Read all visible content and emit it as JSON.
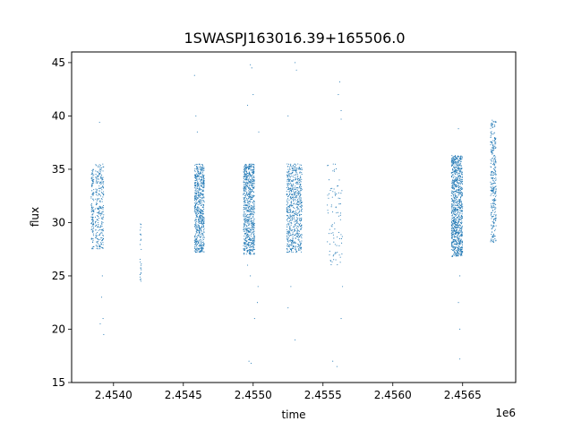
{
  "chart_data": {
    "type": "scatter",
    "title": "1SWASPJ163016.39+165506.0",
    "xlabel": "time",
    "ylabel": "flux",
    "x_offset_label": "1e6",
    "xlim": [
      2453700,
      2456880
    ],
    "ylim": [
      15,
      46
    ],
    "xticks": [
      2454000,
      2454500,
      2455000,
      2455500,
      2456000,
      2456500
    ],
    "xtick_labels": [
      "2.4540",
      "2.4545",
      "2.4550",
      "2.4555",
      "2.4560",
      "2.4565"
    ],
    "yticks": [
      15,
      20,
      25,
      30,
      35,
      40,
      45
    ],
    "ytick_labels": [
      "15",
      "20",
      "25",
      "30",
      "35",
      "40",
      "45"
    ],
    "grid": false,
    "marker_color": "#1f77b4",
    "clusters": [
      {
        "x_start": 2453840,
        "x_end": 2453860,
        "y_min": 27.5,
        "y_max": 35,
        "n": 120,
        "outliers": []
      },
      {
        "x_start": 2453870,
        "x_end": 2453930,
        "y_min": 27.5,
        "y_max": 35.5,
        "n": 260,
        "outliers": [
          [
            2453900,
            39.4
          ],
          [
            2453920,
            25
          ],
          [
            2453915,
            23
          ],
          [
            2453925,
            21
          ],
          [
            2453930,
            19.5
          ],
          [
            2453905,
            20.5
          ]
        ]
      },
      {
        "x_start": 2454190,
        "x_end": 2454200,
        "y_min": 24.5,
        "y_max": 30.5,
        "n": 25,
        "outliers": []
      },
      {
        "x_start": 2454580,
        "x_end": 2454650,
        "y_min": 27.2,
        "y_max": 35.5,
        "n": 650,
        "outliers": [
          [
            2454580,
            43.8
          ],
          [
            2454590,
            40
          ],
          [
            2454600,
            38.5
          ]
        ]
      },
      {
        "x_start": 2454930,
        "x_end": 2455010,
        "y_min": 27,
        "y_max": 35.5,
        "n": 750,
        "outliers": [
          [
            2454980,
            44.8
          ],
          [
            2454990,
            44.5
          ],
          [
            2454960,
            41
          ],
          [
            2455000,
            42
          ],
          [
            2454960,
            26
          ],
          [
            2454980,
            25
          ],
          [
            2454970,
            17
          ],
          [
            2454985,
            16.8
          ],
          [
            2455010,
            21
          ],
          [
            2455040,
            38.5
          ],
          [
            2455030,
            22.5
          ],
          [
            2455035,
            24
          ]
        ]
      },
      {
        "x_start": 2455240,
        "x_end": 2455350,
        "y_min": 27.2,
        "y_max": 35.5,
        "n": 650,
        "outliers": [
          [
            2455250,
            40
          ],
          [
            2455300,
            45
          ],
          [
            2455310,
            44.3
          ],
          [
            2455250,
            22
          ],
          [
            2455270,
            24
          ],
          [
            2455300,
            19
          ]
        ]
      },
      {
        "x_start": 2455530,
        "x_end": 2455640,
        "y_min": 26,
        "y_max": 35.5,
        "n": 90,
        "outliers": [
          [
            2455620,
            43.2
          ],
          [
            2455610,
            42
          ],
          [
            2455630,
            40.5
          ],
          [
            2455630,
            39.7
          ],
          [
            2455570,
            17
          ],
          [
            2455600,
            16.5
          ],
          [
            2455630,
            21
          ],
          [
            2455640,
            24
          ]
        ]
      },
      {
        "x_start": 2456420,
        "x_end": 2456500,
        "y_min": 26.8,
        "y_max": 36.3,
        "n": 950,
        "outliers": [
          [
            2456470,
            38.8
          ],
          [
            2456480,
            25
          ],
          [
            2456470,
            22.5
          ],
          [
            2456480,
            17.2
          ],
          [
            2456480,
            20
          ]
        ]
      },
      {
        "x_start": 2456700,
        "x_end": 2456740,
        "y_min": 28,
        "y_max": 39.6,
        "n": 300,
        "outliers": [
          [
            2456710,
            38.3
          ],
          [
            2456720,
            39.5
          ]
        ]
      }
    ]
  }
}
